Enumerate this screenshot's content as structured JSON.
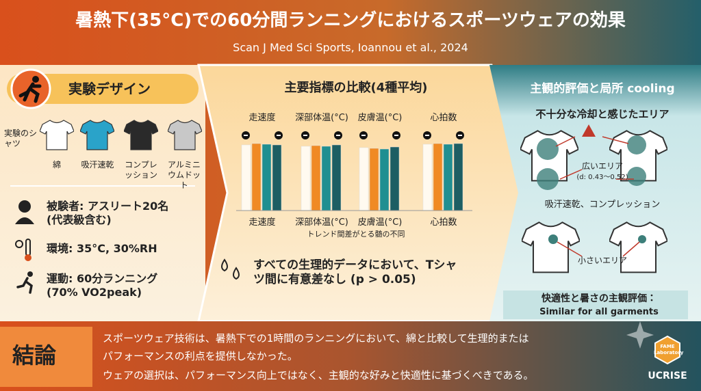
{
  "header": {
    "title": "暑熱下(35°C)での60分間ランニングにおけるスポーツウェアの効果",
    "citation": "Scan J Med Sci Sports, Ioannou et al., 2024"
  },
  "design": {
    "title": "実験デザイン",
    "shirts_label": "実験のシャツ",
    "shirts": [
      "綿",
      "吸汗速乾",
      "コンプレッション",
      "アルミニウムドット"
    ],
    "details": [
      "被験者: アスリート20名 (代表級含む)",
      "環境: 35°C, 30%RH",
      "運動: 60分ランニング (70% VO2peak)"
    ]
  },
  "comparison": {
    "title": "主要指標の比較(4種平均)",
    "metrics": [
      "走速度",
      "深部体温(°C)",
      "皮膚温(°C)",
      "心拍数"
    ],
    "bottom_labels": [
      "走速度",
      "深部体温(°C)",
      "皮膚温(°C)",
      "心拍数"
    ],
    "note": "トレンド間差がとる髄の不同",
    "conclusion": "すべての生理的データにおいて、Tシャツ間に有意差なし (p > 0.05)"
  },
  "subjective": {
    "title": "主観的評価と局所 cooling",
    "cooling_heading": "不十分な冷却と感じたエリア",
    "large_area": "広いエリア",
    "effect_size": "(d: 0.43～0.52)",
    "garments": "吸汗速乾、コンプレッション",
    "small_area": "小さいエリア",
    "comfort_heading": "快適性と暑さの主観評価：",
    "comfort_result": "Similar for all garments"
  },
  "conclusion": {
    "label": "結論",
    "lines": [
      "スポーツウェア技術は、暑熱下での1時間のランニングにおいて、綿と比較して生理的または",
      "パフォーマンスの利点を提供しなかった。",
      "ウェアの選択は、パフォーマンス向上ではなく、主観的な好みと快適性に基づくべきである。"
    ]
  },
  "logo": {
    "lab": "FAME Laboratory",
    "brand": "UCRISE"
  }
}
